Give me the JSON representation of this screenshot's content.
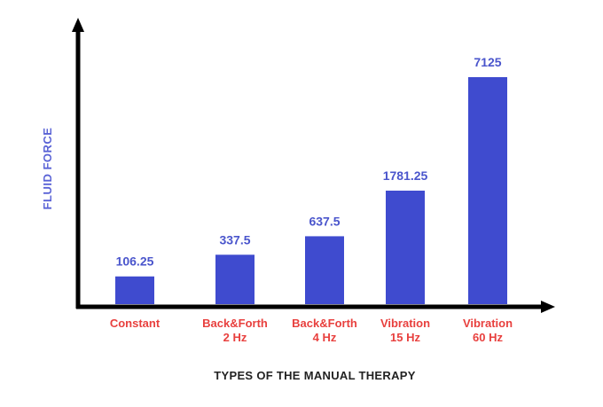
{
  "chart_data": {
    "type": "bar",
    "categories": [
      [
        "Constant"
      ],
      [
        "Back&Forth",
        "2 Hz"
      ],
      [
        "Back&Forth",
        "4 Hz"
      ],
      [
        "Vibration",
        "15 Hz"
      ],
      [
        "Vibration",
        "60 Hz"
      ]
    ],
    "values": [
      106.25,
      337.5,
      637.5,
      1781.25,
      7125
    ],
    "value_labels": [
      "106.25",
      "337.5",
      "637.5",
      "1781.25",
      "7125"
    ],
    "title": "",
    "xlabel": "TYPES OF THE MANUAL THERAPY",
    "ylabel": "FLUID FORCE",
    "scale": "non-linear",
    "grid": false,
    "legend": "none",
    "colors": {
      "bar": "#3f4bcf",
      "value_label": "#4a55cc",
      "category_label": "#e8403e",
      "y_label": "#5a63d6",
      "x_label": "#222222",
      "axis": "#000000"
    }
  }
}
